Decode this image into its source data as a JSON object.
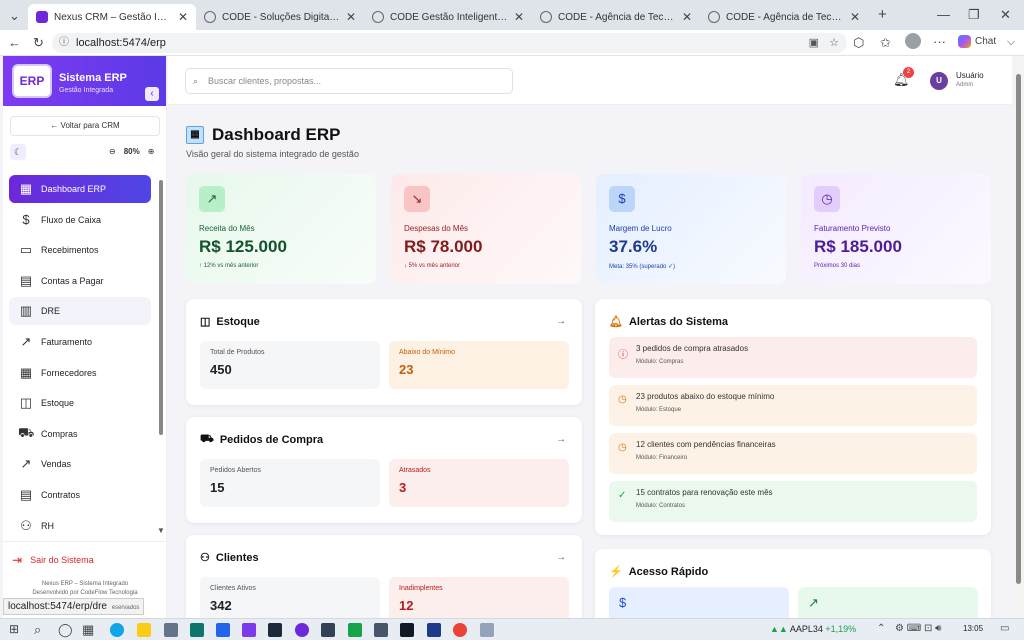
{
  "browser": {
    "tabs": [
      {
        "title": "Nexus CRM – Gestão Inteligente",
        "active": true,
        "color": "#6d28d9"
      },
      {
        "title": "CODE - Soluções Digitais Profissio",
        "active": false,
        "color": "#888"
      },
      {
        "title": "CODE Gestão Inteligente | Transfo",
        "active": false,
        "color": "#888"
      },
      {
        "title": "CODE - Agência de Tecnologia Em",
        "active": false,
        "color": "#888"
      },
      {
        "title": "CODE - Agência de Tecnologia Em",
        "active": false,
        "color": "#888"
      }
    ],
    "url": "localhost:5474/erp",
    "chat_label": "Chat",
    "status_url": "localhost:5474/erp/dre"
  },
  "sidebar": {
    "logo": "ERP",
    "title": "Sistema ERP",
    "subtitle": "Gestão Integrada",
    "back_label": "Voltar para CRM",
    "zoom": "80%",
    "items": [
      {
        "label": "Dashboard ERP",
        "icon": "grid-icon",
        "glyph": "▦",
        "active": true
      },
      {
        "label": "Fluxo de Caixa",
        "icon": "dollar-icon",
        "glyph": "$"
      },
      {
        "label": "Recebimentos",
        "icon": "card-icon",
        "glyph": "▭"
      },
      {
        "label": "Contas a Pagar",
        "icon": "file-icon",
        "glyph": "▤"
      },
      {
        "label": "DRE",
        "icon": "bar-chart-icon",
        "glyph": "▥",
        "hover": true
      },
      {
        "label": "Faturamento",
        "icon": "trend-icon",
        "glyph": "↗"
      },
      {
        "label": "Fornecedores",
        "icon": "building-icon",
        "glyph": "▦"
      },
      {
        "label": "Estoque",
        "icon": "box-icon",
        "glyph": "◫"
      },
      {
        "label": "Compras",
        "icon": "cart-icon",
        "glyph": "⛟"
      },
      {
        "label": "Vendas",
        "icon": "trend-icon",
        "glyph": "↗"
      },
      {
        "label": "Contratos",
        "icon": "document-icon",
        "glyph": "▤"
      },
      {
        "label": "RH",
        "icon": "users-icon",
        "glyph": "⚇"
      }
    ],
    "logout": "Sair do Sistema",
    "footer1": "Nexus ERP – Sistema Integrado",
    "footer2": "Desenvolvido por CodeFlow Tecnologia",
    "footer3": "eservados"
  },
  "topbar": {
    "search_placeholder": "Buscar clientes, propostas...",
    "notif_count": "2",
    "avatar": "U",
    "user_name": "Usuário",
    "user_role": "Admin"
  },
  "page": {
    "title": "Dashboard ERP",
    "subtitle": "Visão geral do sistema integrado de gestão"
  },
  "kpis": [
    {
      "label": "Receita do Mês",
      "value": "R$ 125.000",
      "sub": "↑ 12% vs mês anterior",
      "glyph": "↗",
      "bg": "#e7f8ec",
      "icbg": "#b8efc9",
      "color": "#14532d",
      "lc": "#166534"
    },
    {
      "label": "Despesas do Mês",
      "value": "R$ 78.000",
      "sub": "↓ 5% vs mês anterior",
      "glyph": "↘",
      "bg": "#fdeaea",
      "icbg": "#f8c4c4",
      "color": "#7f1d1d",
      "lc": "#991b1b"
    },
    {
      "label": "Margem de Lucro",
      "value": "37.6%",
      "sub": "Meta: 35% (superado ✓)",
      "glyph": "$",
      "bg": "#e5efff",
      "icbg": "#bcd5fb",
      "color": "#1e3a8a",
      "lc": "#1e40af"
    },
    {
      "label": "Faturamento Previsto",
      "value": "R$ 185.000",
      "sub": "Próximos 30 dias",
      "glyph": "◷",
      "bg": "#f4ebff",
      "icbg": "#e2cdfb",
      "color": "#4c1d95",
      "lc": "#5b21b6"
    }
  ],
  "cards": [
    {
      "title": "Estoque",
      "glyph": "◫",
      "boxes": [
        {
          "label": "Total de Produtos",
          "value": "450"
        },
        {
          "label": "Abaixo do Mínimo",
          "value": "23"
        }
      ]
    },
    {
      "title": "Pedidos de Compra",
      "glyph": "⛟",
      "boxes": [
        {
          "label": "Pedidos Abertos",
          "value": "15"
        },
        {
          "label": "Atrasados",
          "value": "3"
        }
      ]
    },
    {
      "title": "Clientes",
      "glyph": "⚇",
      "boxes": [
        {
          "label": "Clientes Ativos",
          "value": "342"
        },
        {
          "label": "Inadimplentes",
          "value": "12"
        }
      ]
    }
  ],
  "alerts": {
    "title": "Alertas do Sistema",
    "items": [
      {
        "text": "3 pedidos de compra atrasados",
        "module": "Módulo: Compras",
        "bg": "#fdecec",
        "color": "#dc2626",
        "glyph": "ⓘ"
      },
      {
        "text": "23 produtos abaixo do estoque mínimo",
        "module": "Módulo: Estoque",
        "bg": "#fdf2e6",
        "color": "#d97706",
        "glyph": "◷"
      },
      {
        "text": "12 clientes com pendências financeiras",
        "module": "Módulo: Financeiro",
        "bg": "#fdf2e6",
        "color": "#d97706",
        "glyph": "◷"
      },
      {
        "text": "15 contratos para renovação este mês",
        "module": "Módulo: Contratos",
        "bg": "#eaf8ee",
        "color": "#16a34a",
        "glyph": "✓"
      }
    ]
  },
  "quick": {
    "title": "Acesso Rápido"
  },
  "taskbar": {
    "ticker": "AAPL34",
    "ticker_change": "+1,19%",
    "clock": "13:05"
  }
}
